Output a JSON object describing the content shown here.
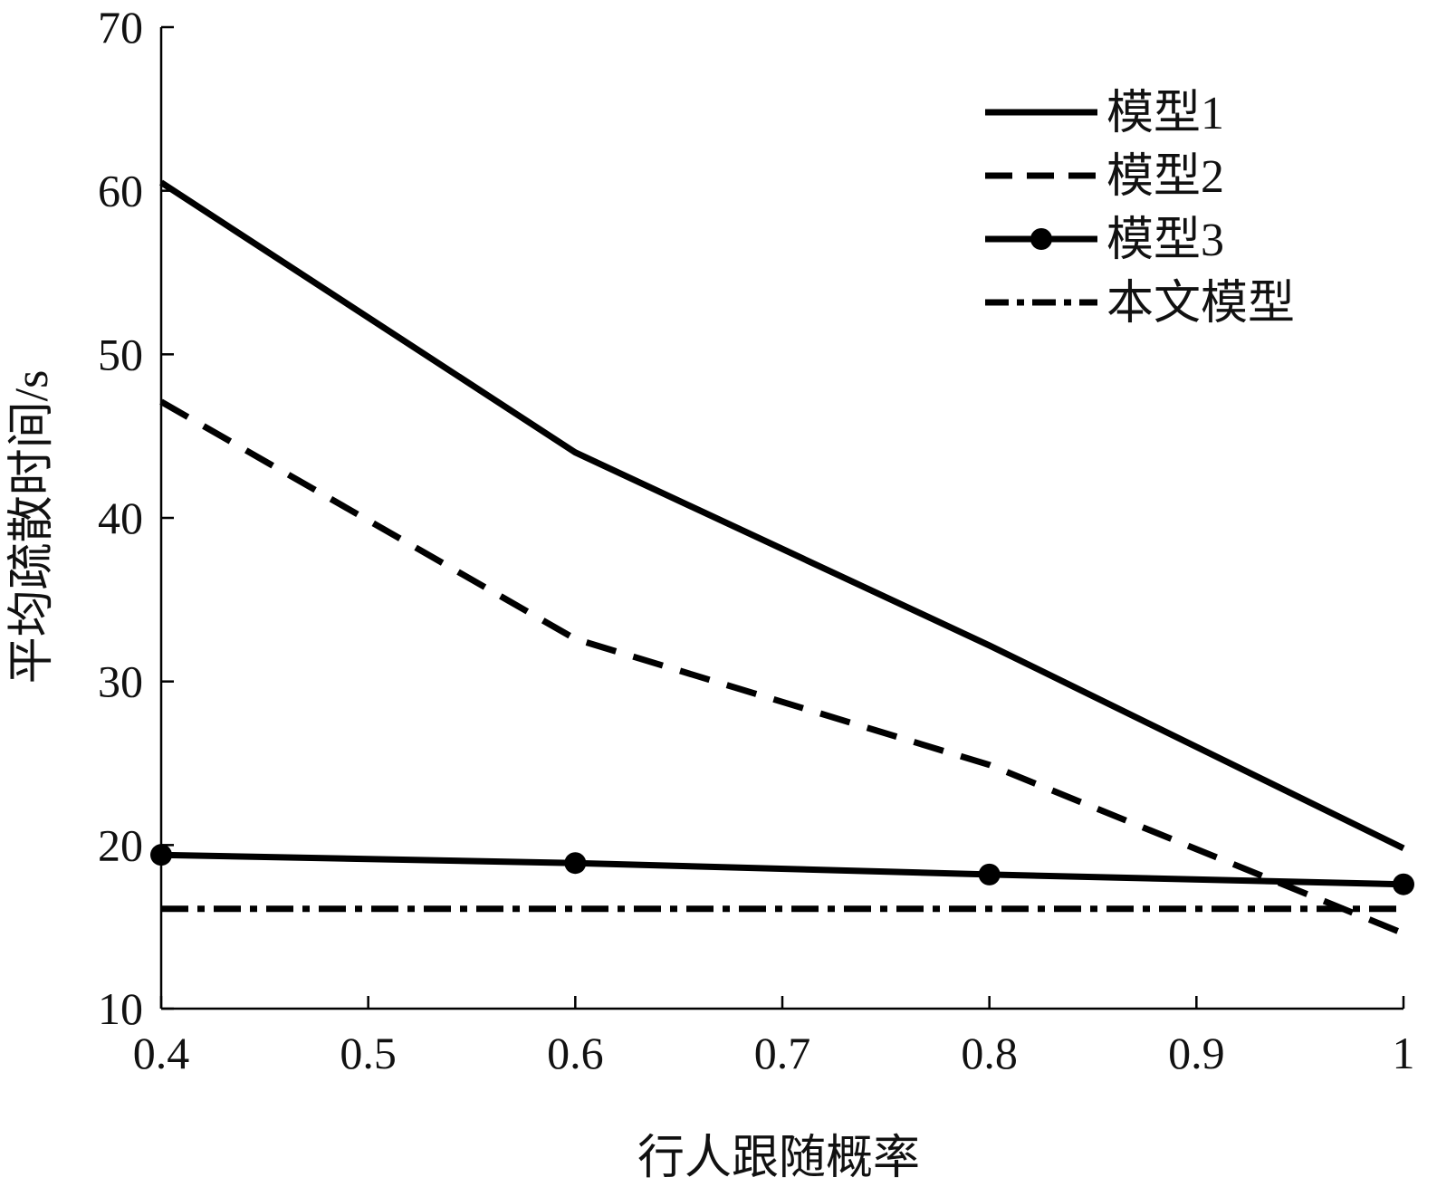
{
  "chart_data": {
    "type": "line",
    "xlabel": "行人跟随概率",
    "ylabel": "平均疏散时间/s",
    "xlim": [
      0.4,
      1.0
    ],
    "ylim": [
      10,
      70
    ],
    "xticks": [
      0.4,
      0.5,
      0.6,
      0.7,
      0.8,
      0.9,
      1.0
    ],
    "xtick_labels": [
      "0.4",
      "0.5",
      "0.6",
      "0.7",
      "0.8",
      "0.9",
      "1"
    ],
    "yticks": [
      10,
      20,
      30,
      40,
      50,
      60,
      70
    ],
    "ytick_labels": [
      "10",
      "20",
      "30",
      "40",
      "50",
      "60",
      "70"
    ],
    "grid": false,
    "legend_position": "top-right",
    "series": [
      {
        "name": "模型1",
        "style": "solid",
        "marker": "none",
        "color": "#000000",
        "x": [
          0.4,
          0.6,
          0.8,
          1.0
        ],
        "y": [
          60.5,
          44.0,
          32.2,
          19.8
        ]
      },
      {
        "name": "模型2",
        "style": "dashed",
        "marker": "none",
        "color": "#000000",
        "x": [
          0.4,
          0.6,
          0.8,
          1.0
        ],
        "y": [
          47.1,
          32.6,
          24.9,
          14.6
        ]
      },
      {
        "name": "模型3",
        "style": "solid",
        "marker": "circle",
        "color": "#000000",
        "x": [
          0.4,
          0.6,
          0.8,
          1.0
        ],
        "y": [
          19.4,
          18.9,
          18.2,
          17.6
        ]
      },
      {
        "name": "本文模型",
        "style": "dashdot",
        "marker": "none",
        "color": "#000000",
        "x": [
          0.4,
          0.6,
          0.8,
          1.0
        ],
        "y": [
          16.1,
          16.1,
          16.1,
          16.1
        ]
      }
    ]
  }
}
